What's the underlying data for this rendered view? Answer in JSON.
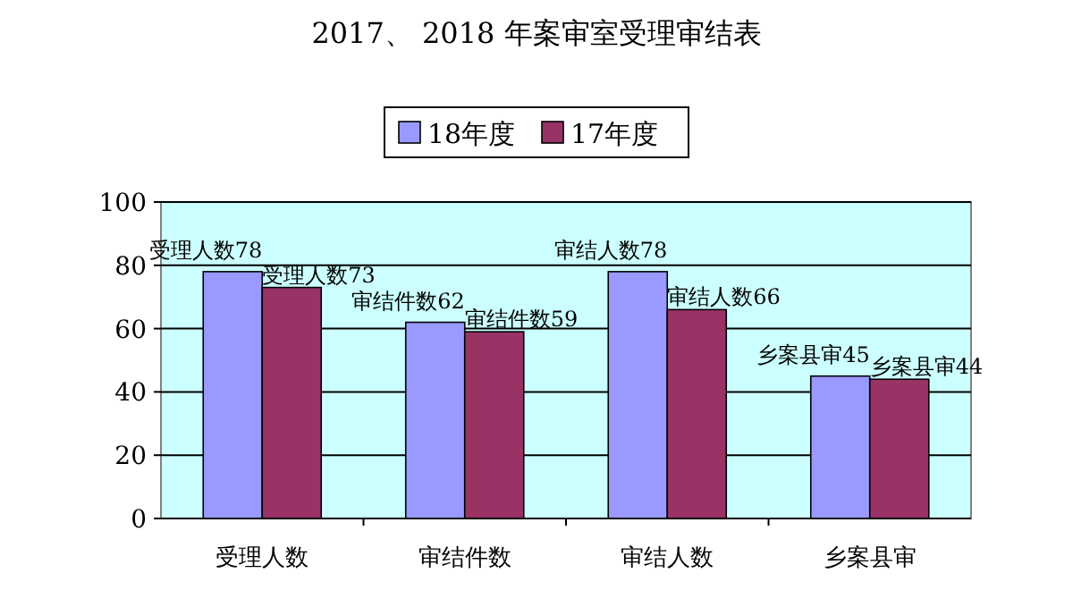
{
  "chart_data": {
    "type": "bar",
    "title": "2017、 2018 年案审室受理审结表",
    "categories": [
      "受理人数",
      "审结件数",
      "审结人数",
      "乡案县审"
    ],
    "series": [
      {
        "name": "18年度",
        "color": "#9999ff",
        "values": [
          78,
          62,
          78,
          45
        ],
        "value_labels": [
          "受理人数78",
          "审结件数62",
          "审结人数78",
          "乡案县审45"
        ]
      },
      {
        "name": "17年度",
        "color": "#993366",
        "values": [
          73,
          59,
          66,
          44
        ],
        "value_labels": [
          "受理人数73",
          "审结件数59",
          "审结人数66",
          "乡案县审44"
        ]
      }
    ],
    "ylim": [
      0,
      100
    ],
    "yticks": [
      0,
      20,
      40,
      60,
      80,
      100
    ],
    "grid": "y",
    "legend": "top"
  }
}
